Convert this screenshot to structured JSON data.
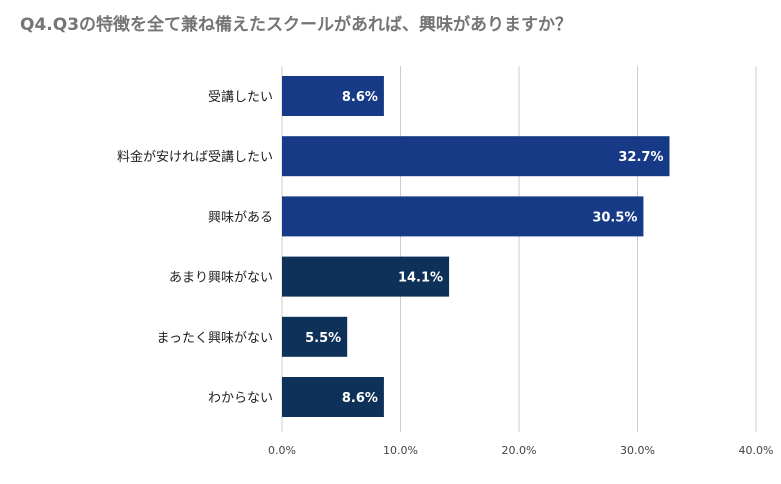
{
  "chart_data": {
    "type": "bar",
    "orientation": "horizontal",
    "title": "Q4.Q3の特徴を全て兼ね備えたスクールがあれば、興味がありますか？",
    "categories": [
      "受講したい",
      "料金が安ければ受講したい",
      "興味がある",
      "あまり興味がない",
      "まったく興味がない",
      "わからない"
    ],
    "values": [
      8.6,
      32.7,
      30.5,
      14.1,
      5.5,
      8.6
    ],
    "value_labels": [
      "8.6%",
      "32.7%",
      "30.5%",
      "14.1%",
      "5.5%",
      "8.6%"
    ],
    "bar_colors": [
      "#173a87",
      "#173a87",
      "#173a87",
      "#0d3158",
      "#0d3158",
      "#0d3158"
    ],
    "xlim": [
      0,
      40
    ],
    "x_ticks": [
      0,
      10,
      20,
      30,
      40
    ],
    "x_tick_labels": [
      "0.0%",
      "10.0%",
      "20.0%",
      "30.0%",
      "40.0%"
    ],
    "grid": true,
    "xlabel": "",
    "ylabel": ""
  }
}
